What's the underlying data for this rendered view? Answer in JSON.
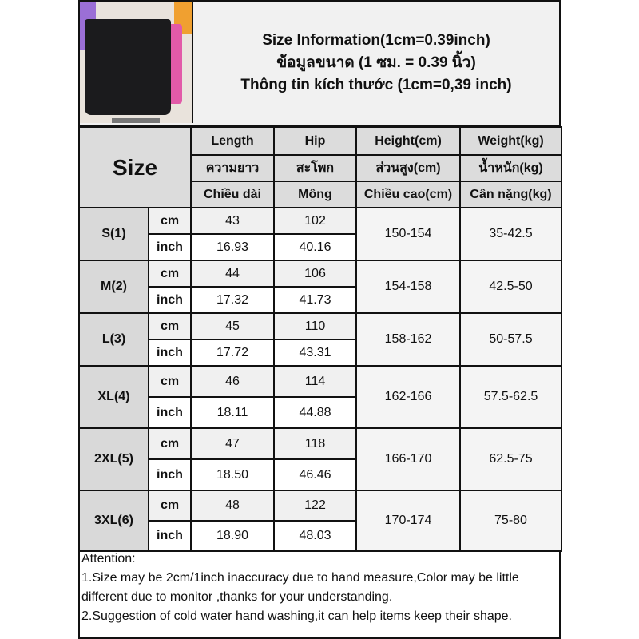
{
  "header": {
    "title_en": "Size Information(1cm=0.39inch)",
    "title_th": "ข้อมูลขนาด (1 ซม. = 0.39 นิ้ว)",
    "title_vi": "Thông tin kích thước (1cm=0,39 inch)"
  },
  "table": {
    "size_label": "Size",
    "columns": [
      {
        "en": "Length",
        "th": "ความยาว",
        "vi": "Chiều dài"
      },
      {
        "en": "Hip",
        "th": "สะโพก",
        "vi": "Mông"
      },
      {
        "en": "Height(cm)",
        "th": "ส่วนสูง(cm)",
        "vi": "Chiều cao(cm)"
      },
      {
        "en": "Weight(kg)",
        "th": "น้ำหนัก(kg)",
        "vi": "Cân nặng(kg)"
      }
    ],
    "unit_cm": "cm",
    "unit_inch": "inch",
    "rows": [
      {
        "size": "S(1)",
        "length_cm": "43",
        "hip_cm": "102",
        "length_inch": "16.93",
        "hip_inch": "40.16",
        "height": "150-154",
        "weight": "35-42.5"
      },
      {
        "size": "M(2)",
        "length_cm": "44",
        "hip_cm": "106",
        "length_inch": "17.32",
        "hip_inch": "41.73",
        "height": "154-158",
        "weight": "42.5-50"
      },
      {
        "size": "L(3)",
        "length_cm": "45",
        "hip_cm": "110",
        "length_inch": "17.72",
        "hip_inch": "43.31",
        "height": "158-162",
        "weight": "50-57.5"
      },
      {
        "size": "XL(4)",
        "length_cm": "46",
        "hip_cm": "114",
        "length_inch": "18.11",
        "hip_inch": "44.88",
        "height": "162-166",
        "weight": "57.5-62.5"
      },
      {
        "size": "2XL(5)",
        "length_cm": "47",
        "hip_cm": "118",
        "length_inch": "18.50",
        "hip_inch": "46.46",
        "height": "166-170",
        "weight": "62.5-75"
      },
      {
        "size": "3XL(6)",
        "length_cm": "48",
        "hip_cm": "122",
        "length_inch": "18.90",
        "hip_inch": "48.03",
        "height": "170-174",
        "weight": "75-80"
      }
    ]
  },
  "attention": {
    "title": "Attention:",
    "line1": "1.Size may be 2cm/1inch inaccuracy due to hand measure,Color may be little different due to monitor ,thanks for your understanding.",
    "line2": "2.Suggestion of cold water hand washing,it can help items keep their shape."
  }
}
